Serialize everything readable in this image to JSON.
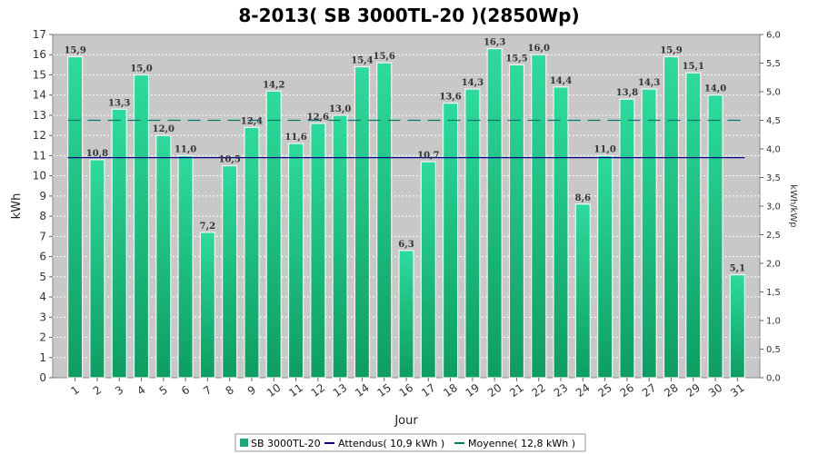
{
  "chart_data": {
    "type": "bar",
    "title": "8-2013( SB 3000TL-20 )(2850Wp)",
    "xlabel": "Jour",
    "ylabel": "kWh",
    "y2label": "kWh/kWp",
    "ylim": [
      0,
      17
    ],
    "y2lim": [
      0,
      6
    ],
    "y_ticks": [
      "0",
      "1",
      "2",
      "3",
      "4",
      "5",
      "6",
      "7",
      "8",
      "9",
      "10",
      "11",
      "12",
      "13",
      "14",
      "15",
      "16",
      "17"
    ],
    "y2_ticks": [
      "0,0",
      "0,5",
      "1,0",
      "1,5",
      "2,0",
      "2,5",
      "3,0",
      "3,5",
      "4,0",
      "4,5",
      "5,0",
      "5,5",
      "6,0"
    ],
    "categories": [
      "1",
      "2",
      "3",
      "4",
      "5",
      "6",
      "7",
      "8",
      "9",
      "10",
      "11",
      "12",
      "13",
      "14",
      "15",
      "16",
      "17",
      "18",
      "19",
      "20",
      "21",
      "22",
      "23",
      "24",
      "25",
      "26",
      "27",
      "28",
      "29",
      "30",
      "31"
    ],
    "series": [
      {
        "name": "SB 3000TL-20",
        "values": [
          15.9,
          10.8,
          13.3,
          15.0,
          12.0,
          11.0,
          7.2,
          10.5,
          12.4,
          14.2,
          11.6,
          12.6,
          13.0,
          15.4,
          15.6,
          6.3,
          10.7,
          13.6,
          14.3,
          16.3,
          15.5,
          16.0,
          14.4,
          8.6,
          11.0,
          13.8,
          14.3,
          15.9,
          15.1,
          14.0,
          5.1
        ],
        "labels": [
          "15,9",
          "10,8",
          "13,3",
          "15,0",
          "12,0",
          "11,0",
          "7,2",
          "10,5",
          "12,4",
          "14,2",
          "11,6",
          "12,6",
          "13,0",
          "15,4",
          "15,6",
          "6,3",
          "10,7",
          "13,6",
          "14,3",
          "16,3",
          "15,5",
          "16,0",
          "14,4",
          "8,6",
          "11,0",
          "13,8",
          "14,3",
          "15,9",
          "15,1",
          "14,0",
          "5,1"
        ],
        "color": "#1FA876"
      }
    ],
    "reference_lines": [
      {
        "name": "Attendus( 10,9 kWh )",
        "value": 10.9,
        "color": "#00008B",
        "style": "solid"
      },
      {
        "name": "Moyenne( 12,8 kWh )",
        "value": 12.75,
        "color": "#00796B",
        "style": "dashed"
      }
    ],
    "legend_items": [
      "SB 3000TL-20",
      "Attendus( 10,9 kWh )",
      "Moyenne( 12,8 kWh )"
    ],
    "legend_position": "bottom",
    "grid": true,
    "colors": {
      "plot_bg": "#C8C8C8",
      "bar_top": "#2EDB9C",
      "bar_bottom": "#0E9D62",
      "attendus": "#00008B",
      "moyenne": "#00796B"
    }
  }
}
